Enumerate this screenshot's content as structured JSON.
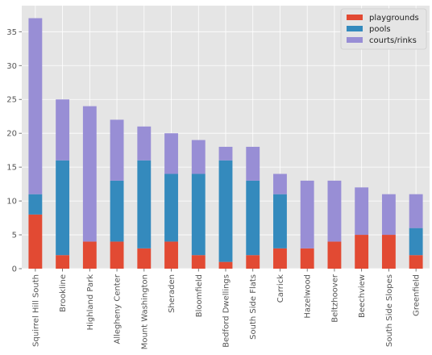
{
  "chart_data": {
    "type": "bar",
    "stacked": true,
    "categories": [
      "Squirrel Hill South",
      "Brookline",
      "Highland Park",
      "Allegheny Center",
      "Mount Washington",
      "Sheraden",
      "Bloomfield",
      "Bedford Dwellings",
      "South Side Flats",
      "Carrick",
      "Hazelwood",
      "Beltzhoover",
      "Beechview",
      "South Side Slopes",
      "Greenfield"
    ],
    "series": [
      {
        "name": "playgrounds",
        "color": "#E24A33",
        "values": [
          8,
          2,
          4,
          4,
          3,
          4,
          2,
          1,
          2,
          3,
          3,
          4,
          5,
          5,
          2
        ]
      },
      {
        "name": "pools",
        "color": "#348ABD",
        "values": [
          3,
          14,
          0,
          9,
          13,
          10,
          12,
          15,
          11,
          8,
          0,
          0,
          0,
          0,
          4
        ]
      },
      {
        "name": "courts/rinks",
        "color": "#988ED5",
        "values": [
          26,
          9,
          20,
          9,
          5,
          6,
          5,
          2,
          5,
          3,
          10,
          9,
          7,
          6,
          5
        ]
      }
    ],
    "ylim": [
      0,
      38.85
    ],
    "yticks": [
      0,
      5,
      10,
      15,
      20,
      25,
      30,
      35
    ],
    "xlabel": "",
    "ylabel": "",
    "title": "",
    "grid": true,
    "legend_position": "top-right",
    "style": "ggplot"
  }
}
